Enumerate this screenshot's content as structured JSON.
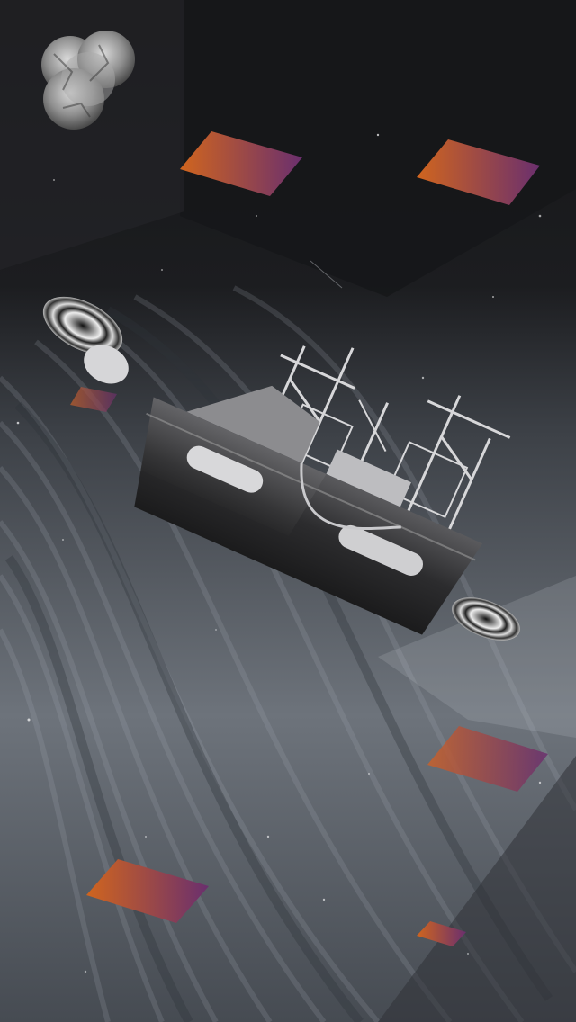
{
  "scene": {
    "subject": "vessel",
    "icons": [
      "moon-icon",
      "ship-icon",
      "planet-ring-icon"
    ]
  },
  "palette": {
    "sky_top": "#141516",
    "sky_mid": "#2a2c30",
    "sea_light": "#8d939b",
    "sea_dark": "#4b5057",
    "accent_orange": "#d0651e",
    "accent_purple": "#6a2f6e",
    "hull_dark": "#2b2b2d",
    "hull_light": "#cfcfd1"
  }
}
